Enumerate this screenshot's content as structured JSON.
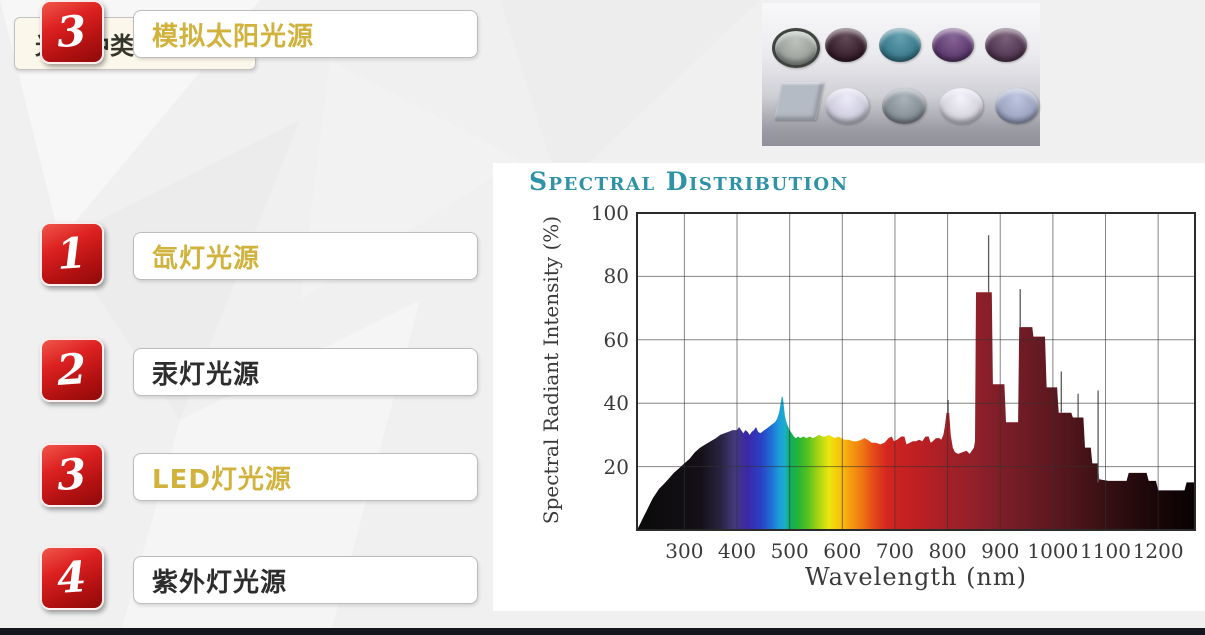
{
  "slide": {
    "title": "光源种类与滤光片",
    "items": [
      {
        "number": "1",
        "label": "氙灯光源",
        "color": "gold"
      },
      {
        "number": "2",
        "label": "汞灯光源",
        "color": "dark"
      },
      {
        "number": "3",
        "label": "LED灯光源",
        "color": "gold"
      },
      {
        "number": "4",
        "label": "紫外灯光源",
        "color": "dark"
      },
      {
        "number": "3",
        "label": "模拟太阳光源",
        "color": "gold"
      }
    ],
    "badge_red": "#c81414",
    "gold_text": "#d0b23c"
  },
  "filters_image": {
    "top_row": [
      {
        "name": "gray-lens-filter",
        "color": "#a9afa9",
        "ring": "#3f4440"
      },
      {
        "name": "dark-maroon-filter",
        "color": "#2c0e1d"
      },
      {
        "name": "teal-filter",
        "color": "#2f8096"
      },
      {
        "name": "purple-filter",
        "color": "#5d3173"
      },
      {
        "name": "plum-filter",
        "color": "#4e2b4d"
      }
    ],
    "bottom_row": [
      {
        "name": "gray-square-filter",
        "color": "#b5bbc5",
        "shape": "square"
      },
      {
        "name": "lavender-filter",
        "color": "#e7e5f9"
      },
      {
        "name": "blue-gray-filter",
        "color": "#8d98a2"
      },
      {
        "name": "white-filter",
        "color": "#f1eefb"
      },
      {
        "name": "periwinkle-filter",
        "color": "#a9b3d7"
      }
    ]
  },
  "chart_data": {
    "type": "area",
    "title": "Spectral Distribution",
    "title_color": "#2f93a8",
    "xlabel": "Wavelength (nm)",
    "ylabel": "Spectral Radiant Intensity (%)",
    "x_range": [
      210,
      1270
    ],
    "y_range": [
      0,
      100
    ],
    "x_ticks": [
      300,
      400,
      500,
      600,
      700,
      800,
      900,
      1000,
      1100,
      1200
    ],
    "y_ticks": [
      20,
      40,
      60,
      80,
      100
    ],
    "grid": true,
    "series": [
      {
        "name": "xenon-lamp-spectrum",
        "points": [
          [
            210,
            0
          ],
          [
            216,
            2
          ],
          [
            222,
            4
          ],
          [
            228,
            6
          ],
          [
            234,
            8
          ],
          [
            240,
            10
          ],
          [
            246,
            11.5
          ],
          [
            252,
            13
          ],
          [
            258,
            14
          ],
          [
            264,
            15
          ],
          [
            272,
            16.5
          ],
          [
            280,
            18
          ],
          [
            290,
            19.5
          ],
          [
            300,
            21
          ],
          [
            310,
            22.5
          ],
          [
            320,
            24.5
          ],
          [
            330,
            26
          ],
          [
            340,
            27
          ],
          [
            350,
            28
          ],
          [
            360,
            29
          ],
          [
            368,
            30
          ],
          [
            376,
            30.5
          ],
          [
            384,
            31
          ],
          [
            392,
            31.5
          ],
          [
            400,
            31.5
          ],
          [
            404,
            32.5
          ],
          [
            408,
            31.5
          ],
          [
            412,
            30.5
          ],
          [
            416,
            31.5
          ],
          [
            420,
            31
          ],
          [
            424,
            30
          ],
          [
            428,
            31
          ],
          [
            432,
            31.5
          ],
          [
            436,
            32.5
          ],
          [
            440,
            31
          ],
          [
            444,
            30.5
          ],
          [
            448,
            31
          ],
          [
            452,
            31.5
          ],
          [
            456,
            32
          ],
          [
            460,
            32.5
          ],
          [
            464,
            33
          ],
          [
            468,
            33.5
          ],
          [
            472,
            34
          ],
          [
            476,
            35
          ],
          [
            480,
            37
          ],
          [
            483,
            40
          ],
          [
            485,
            42
          ],
          [
            487,
            42
          ],
          [
            489,
            39
          ],
          [
            491,
            36
          ],
          [
            493,
            34.5
          ],
          [
            496,
            33
          ],
          [
            500,
            31.5
          ],
          [
            504,
            30.5
          ],
          [
            508,
            29.5
          ],
          [
            512,
            29
          ],
          [
            516,
            29.5
          ],
          [
            520,
            29
          ],
          [
            526,
            29.5
          ],
          [
            532,
            29
          ],
          [
            538,
            29.5
          ],
          [
            544,
            29
          ],
          [
            550,
            29.5
          ],
          [
            556,
            30
          ],
          [
            562,
            29.5
          ],
          [
            568,
            29.5
          ],
          [
            574,
            30
          ],
          [
            580,
            29.5
          ],
          [
            586,
            29
          ],
          [
            592,
            29.5
          ],
          [
            598,
            29
          ],
          [
            604,
            28.5
          ],
          [
            612,
            28.5
          ],
          [
            620,
            28
          ],
          [
            628,
            28
          ],
          [
            636,
            28.5
          ],
          [
            642,
            29
          ],
          [
            648,
            28.5
          ],
          [
            656,
            27.5
          ],
          [
            664,
            27.5
          ],
          [
            672,
            27
          ],
          [
            680,
            27.5
          ],
          [
            688,
            29
          ],
          [
            694,
            29.5
          ],
          [
            698,
            28
          ],
          [
            704,
            28.5
          ],
          [
            712,
            29.5
          ],
          [
            718,
            29.5
          ],
          [
            722,
            27
          ],
          [
            728,
            27.5
          ],
          [
            734,
            28
          ],
          [
            740,
            28
          ],
          [
            746,
            28.5
          ],
          [
            752,
            28
          ],
          [
            758,
            29.5
          ],
          [
            764,
            29.5
          ],
          [
            768,
            27.5
          ],
          [
            772,
            28
          ],
          [
            778,
            29
          ],
          [
            784,
            29
          ],
          [
            788,
            28.5
          ],
          [
            792,
            30
          ],
          [
            795,
            33
          ],
          [
            798,
            37
          ],
          [
            803,
            37
          ],
          [
            806,
            30
          ],
          [
            810,
            26
          ],
          [
            814,
            24.5
          ],
          [
            820,
            24
          ],
          [
            828,
            24.5
          ],
          [
            836,
            25
          ],
          [
            842,
            24
          ],
          [
            846,
            25
          ],
          [
            850,
            26
          ],
          [
            852,
            28
          ],
          [
            854,
            75
          ],
          [
            884,
            75
          ],
          [
            886,
            46
          ],
          [
            908,
            46
          ],
          [
            911,
            34
          ],
          [
            934,
            34
          ],
          [
            936,
            64
          ],
          [
            961,
            64
          ],
          [
            963,
            61
          ],
          [
            985,
            61
          ],
          [
            988,
            45
          ],
          [
            1008,
            45
          ],
          [
            1011,
            37
          ],
          [
            1035,
            37
          ],
          [
            1038,
            35.5
          ],
          [
            1058,
            35.5
          ],
          [
            1061,
            26
          ],
          [
            1072,
            26
          ],
          [
            1075,
            21
          ],
          [
            1085,
            21
          ],
          [
            1088,
            16
          ],
          [
            1105,
            15.5
          ],
          [
            1140,
            15.5
          ],
          [
            1144,
            18
          ],
          [
            1178,
            18
          ],
          [
            1182,
            15.5
          ],
          [
            1196,
            15.5
          ],
          [
            1200,
            12.5
          ],
          [
            1250,
            12.5
          ],
          [
            1254,
            15
          ],
          [
            1270,
            15
          ]
        ]
      }
    ],
    "spikes": [
      [
        878,
        75,
        93
      ],
      [
        938,
        64,
        76
      ],
      [
        801,
        37,
        41
      ],
      [
        1016,
        37,
        50
      ],
      [
        1048,
        35.5,
        43
      ],
      [
        1086,
        15,
        44
      ]
    ],
    "spectrum_gradient": [
      [
        210,
        "#0a0a0a"
      ],
      [
        330,
        "#141016"
      ],
      [
        370,
        "#2a2342"
      ],
      [
        395,
        "#433a7a"
      ],
      [
        420,
        "#3a28a8"
      ],
      [
        445,
        "#2b3fc4"
      ],
      [
        465,
        "#1e6fd4"
      ],
      [
        480,
        "#1e9cdc"
      ],
      [
        492,
        "#18b0c8"
      ],
      [
        500,
        "#12ad62"
      ],
      [
        515,
        "#23b43c"
      ],
      [
        535,
        "#58c21e"
      ],
      [
        555,
        "#a8d414"
      ],
      [
        575,
        "#ece60e"
      ],
      [
        595,
        "#f6c40c"
      ],
      [
        615,
        "#f59e0e"
      ],
      [
        635,
        "#f07c12"
      ],
      [
        660,
        "#e5481a"
      ],
      [
        685,
        "#d42620"
      ],
      [
        710,
        "#c92121"
      ],
      [
        750,
        "#bb2023"
      ],
      [
        800,
        "#a42026"
      ],
      [
        850,
        "#93202a"
      ],
      [
        900,
        "#7e1e28"
      ],
      [
        950,
        "#6d1b24"
      ],
      [
        1000,
        "#5d181f"
      ],
      [
        1050,
        "#4a1419"
      ],
      [
        1100,
        "#371013"
      ],
      [
        1150,
        "#270b0d"
      ],
      [
        1200,
        "#180607"
      ],
      [
        1270,
        "#0a0203"
      ]
    ]
  }
}
